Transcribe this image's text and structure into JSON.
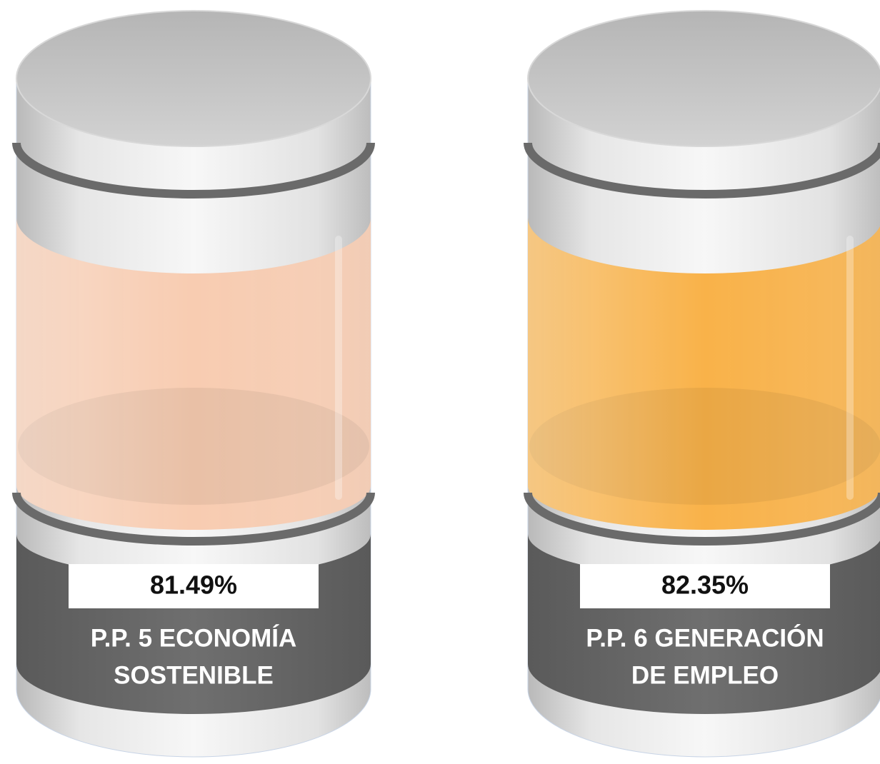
{
  "cylinders": [
    {
      "value": "81.49%",
      "label": [
        "P.P. 5 ECONOMÍA",
        "SOSTENIBLE"
      ],
      "fill_color": "#f8c4a4"
    },
    {
      "value": "82.35%",
      "label": [
        "P.P. 6 GENERACIÓN",
        "DE EMPLEO"
      ],
      "fill_color": "#f9a62a"
    }
  ]
}
